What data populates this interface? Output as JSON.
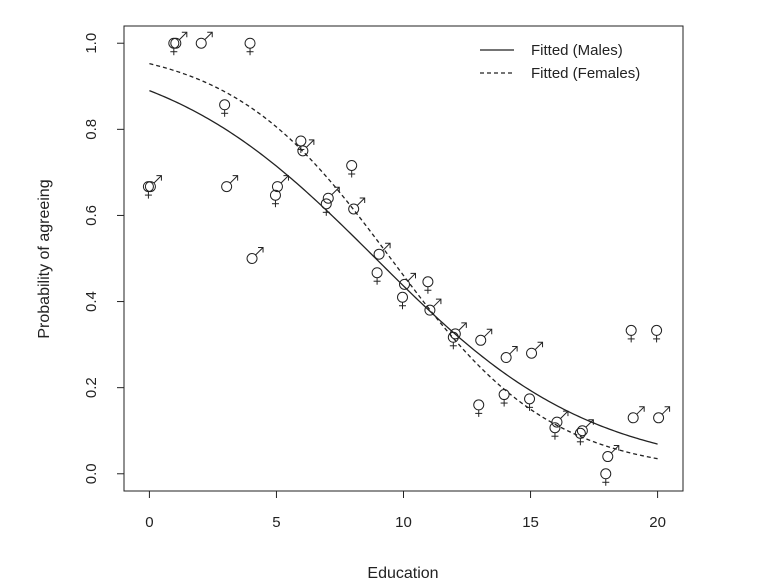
{
  "chart_data": {
    "type": "scatter",
    "title": "",
    "xlabel": "Education",
    "ylabel": "Probability of agreeing",
    "xlim": [
      -1,
      21
    ],
    "ylim": [
      -0.04,
      1.04
    ],
    "xticks": [
      0,
      5,
      10,
      15,
      20
    ],
    "yticks": [
      0.0,
      0.2,
      0.4,
      0.6,
      0.8,
      1.0
    ],
    "grid": false,
    "legend": {
      "placement": "top-right",
      "entries": [
        {
          "label": "Fitted (Males)",
          "line_style": "solid"
        },
        {
          "label": "Fitted (Females)",
          "line_style": "dashed"
        }
      ]
    },
    "points_male": [
      [
        0,
        0.667
      ],
      [
        1,
        1.0
      ],
      [
        2,
        1.0
      ],
      [
        3,
        0.667
      ],
      [
        4,
        0.5
      ],
      [
        5,
        0.667
      ],
      [
        6,
        0.75
      ],
      [
        7,
        0.64
      ],
      [
        8,
        0.615
      ],
      [
        9,
        0.51
      ],
      [
        10,
        0.44
      ],
      [
        11,
        0.38
      ],
      [
        12,
        0.325
      ],
      [
        13,
        0.31
      ],
      [
        14,
        0.27
      ],
      [
        15,
        0.28
      ],
      [
        16,
        0.12
      ],
      [
        17,
        0.1
      ],
      [
        18,
        0.04
      ],
      [
        19,
        0.13
      ],
      [
        20,
        0.13
      ]
    ],
    "points_female": [
      [
        0,
        0.667
      ],
      [
        1,
        1.0
      ],
      [
        3,
        0.857
      ],
      [
        4,
        1.0
      ],
      [
        5,
        0.647
      ],
      [
        6,
        0.773
      ],
      [
        7,
        0.627
      ],
      [
        8,
        0.716
      ],
      [
        9,
        0.467
      ],
      [
        10,
        0.41
      ],
      [
        11,
        0.446
      ],
      [
        12,
        0.317
      ],
      [
        13,
        0.16
      ],
      [
        14,
        0.184
      ],
      [
        15,
        0.174
      ],
      [
        16,
        0.107
      ],
      [
        17,
        0.094
      ],
      [
        18,
        0.0
      ],
      [
        19,
        0.333
      ],
      [
        20,
        0.333
      ]
    ],
    "fitted_male": {
      "intercept": 2.09,
      "slope": -0.2346
    },
    "fitted_female": {
      "intercept": 3.0,
      "slope": -0.3158
    }
  }
}
